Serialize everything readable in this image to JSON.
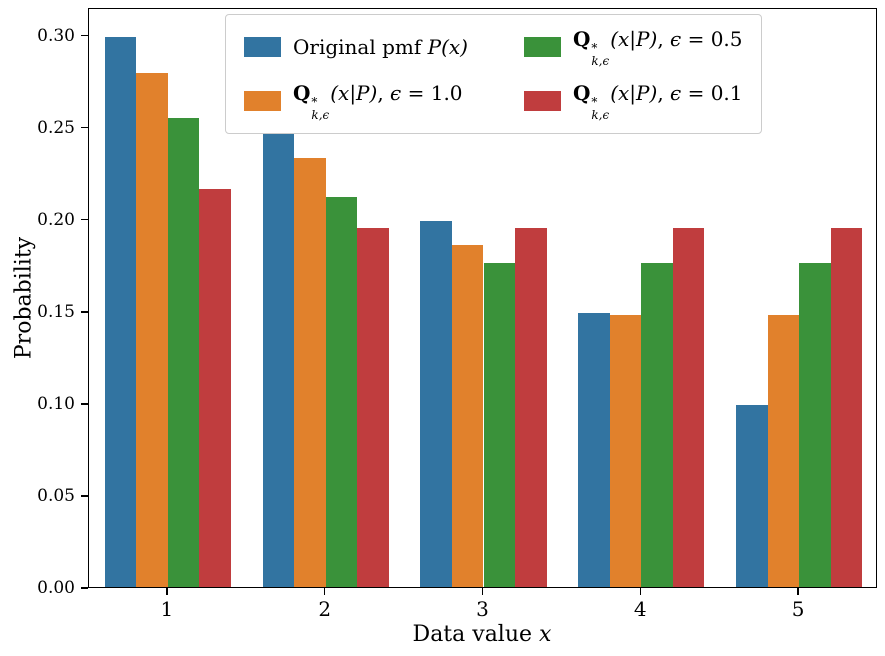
{
  "chart_data": {
    "type": "bar",
    "title": "",
    "ylabel": "Probability",
    "xlabel_text": "Data value x",
    "xlabel_segments": [
      {
        "t": "Data value "
      },
      {
        "t": "x",
        "i": true
      }
    ],
    "categories": [
      "1",
      "2",
      "3",
      "4",
      "5"
    ],
    "yticks": [
      "0.00",
      "0.05",
      "0.10",
      "0.15",
      "0.20",
      "0.25",
      "0.30"
    ],
    "ylim": [
      0,
      0.315
    ],
    "grid": false,
    "legend_position": "upper center",
    "legend_columns": 2,
    "series": [
      {
        "name": "Original pmf P(x)",
        "color": "#3274a1",
        "values": [
          0.3,
          0.25,
          0.2,
          0.15,
          0.1
        ],
        "label_segments": [
          {
            "t": "Original pmf "
          },
          {
            "t": "P(x)",
            "i": true
          }
        ]
      },
      {
        "name": "Q*_{k,ϵ}(x|P), ϵ = 1.0",
        "color": "#e1812c",
        "values": [
          0.28,
          0.234,
          0.187,
          0.149,
          0.149
        ],
        "label_segments": [
          {
            "t": "Q",
            "b": true
          },
          {
            "sup": "*",
            "sub": "k,ϵ"
          },
          {
            "t": "(x|P)",
            "i": true
          },
          {
            "t": ", "
          },
          {
            "t": "ϵ",
            "i": true
          },
          {
            "t": " = 1.0"
          }
        ]
      },
      {
        "name": "Q*_{k,ϵ}(x|P), ϵ = 0.5",
        "color": "#3a923a",
        "values": [
          0.256,
          0.213,
          0.177,
          0.177,
          0.177
        ],
        "label_segments": [
          {
            "t": "Q",
            "b": true
          },
          {
            "sup": "*",
            "sub": "k,ϵ"
          },
          {
            "t": "(x|P)",
            "i": true
          },
          {
            "t": ", "
          },
          {
            "t": "ϵ",
            "i": true
          },
          {
            "t": " = 0.5"
          }
        ]
      },
      {
        "name": "Q*_{k,ϵ}(x|P), ϵ = 0.1",
        "color": "#c03d3e",
        "values": [
          0.217,
          0.196,
          0.196,
          0.196,
          0.196
        ],
        "label_segments": [
          {
            "t": "Q",
            "b": true
          },
          {
            "sup": "*",
            "sub": "k,ϵ"
          },
          {
            "t": "(x|P)",
            "i": true
          },
          {
            "t": ", "
          },
          {
            "t": "ϵ",
            "i": true
          },
          {
            "t": " = 0.1"
          }
        ]
      }
    ]
  }
}
